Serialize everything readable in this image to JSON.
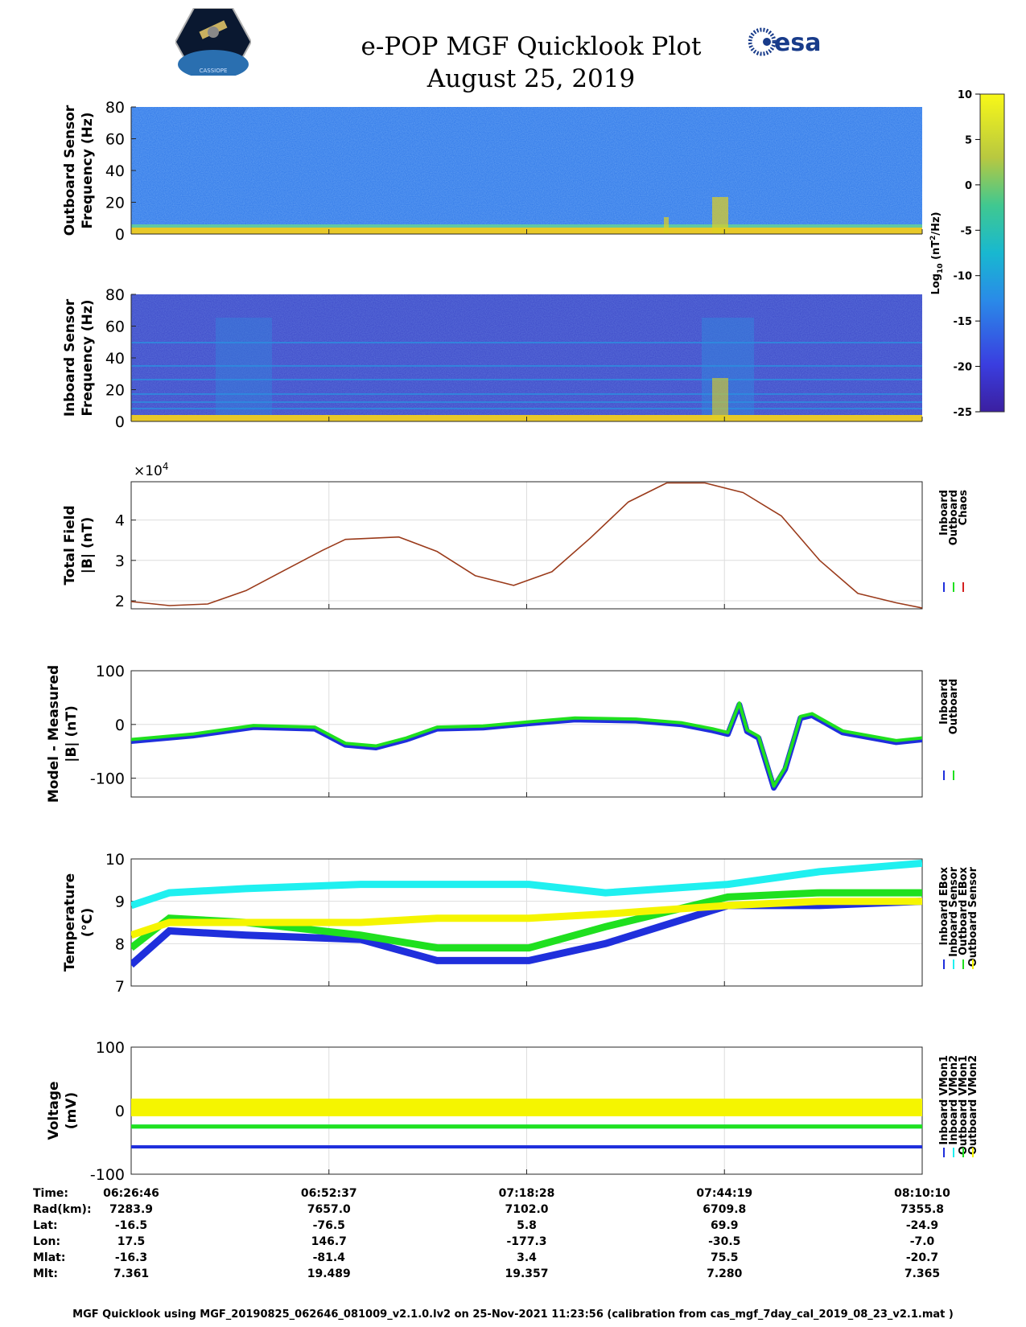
{
  "title_line1": "e-POP MGF Quicklook Plot",
  "title_line2": "August 25, 2019",
  "logo_left_text": "CASSIOPE",
  "logo_right_text": "esa",
  "colors": {
    "inboard": "#1f2fdc",
    "outboard": "#1fe01f",
    "chaos": "#d42020",
    "total_field_line": "#9a3a1a",
    "cyan": "#1ff0f0",
    "yellow": "#f5f500",
    "spectrogram_outboard_bg": "#2b74e8",
    "spectrogram_inboard_bg": "#3a45c8"
  },
  "colorbar": {
    "label": "Log10 (nT2/Hz)",
    "label_base": "Log",
    "label_sub": "10",
    "label_unit_pre": " (nT",
    "label_sup": "2",
    "label_unit_post": "/Hz)",
    "ticks": [
      "10",
      "5",
      "0",
      "-5",
      "-10",
      "-15",
      "-20",
      "-25"
    ],
    "range": [
      -25,
      10
    ]
  },
  "time_axis": {
    "labels": [
      "06:26:46",
      "06:52:37",
      "07:18:28",
      "07:44:19",
      "08:10:10"
    ]
  },
  "chart_data": [
    {
      "type": "heatmap",
      "id": "outboard_spectrogram",
      "ylabel_line1": "Outboard Sensor",
      "ylabel_line2": "Frequency (Hz)",
      "ylim": [
        0,
        80
      ],
      "yticks": [
        "0",
        "20",
        "40",
        "60",
        "80"
      ]
    },
    {
      "type": "heatmap",
      "id": "inboard_spectrogram",
      "ylabel_line1": "Inboard Sensor",
      "ylabel_line2": "Frequency (Hz)",
      "ylim": [
        0,
        80
      ],
      "yticks": [
        "0",
        "20",
        "40",
        "60",
        "80"
      ]
    },
    {
      "type": "line",
      "id": "total_field",
      "ylabel_line1": "Total Field",
      "ylabel_line2": "|B| (nT)",
      "exponent_label": "×10",
      "exponent_power": "4",
      "ylim": [
        1.8,
        4.95
      ],
      "yticks": [
        "2",
        "3",
        "4"
      ],
      "x_minutes": [
        0,
        5,
        10,
        15,
        20,
        25,
        28,
        35,
        40,
        45,
        50,
        55,
        60,
        65,
        70,
        75,
        80,
        85,
        90,
        95,
        100,
        103.4
      ],
      "values": [
        1.98,
        1.88,
        1.92,
        2.25,
        2.75,
        3.25,
        3.52,
        3.58,
        3.22,
        2.62,
        2.38,
        2.72,
        3.55,
        4.45,
        4.92,
        4.92,
        4.68,
        4.1,
        3.0,
        2.18,
        1.95,
        1.82
      ],
      "legend": [
        "Inboard",
        "Outboard",
        "Chaos"
      ]
    },
    {
      "type": "line",
      "id": "model_minus_measured",
      "ylabel_line1": "Model - Measured",
      "ylabel_line2": "|B| (nT)",
      "ylim": [
        -135,
        100
      ],
      "yticks": [
        "100",
        "0",
        "-100"
      ],
      "x_minutes": [
        0,
        8,
        16,
        24,
        28,
        32,
        36,
        40,
        46,
        52,
        58,
        66,
        72,
        76,
        78,
        79.5,
        80.5,
        82,
        84,
        85.5,
        87.5,
        89,
        93,
        100,
        103.4
      ],
      "values": [
        -28,
        -18,
        -2,
        -5,
        -35,
        -40,
        -25,
        -5,
        -3,
        5,
        12,
        10,
        3,
        -8,
        -15,
        40,
        -10,
        -22,
        -115,
        -80,
        15,
        20,
        -12,
        -30,
        -25
      ],
      "legend": [
        "Inboard",
        "Outboard"
      ]
    },
    {
      "type": "line",
      "id": "temperature",
      "ylabel_line1": "Temperature",
      "ylabel_line2": "(°C)",
      "ylim": [
        7,
        10
      ],
      "yticks": [
        "10",
        "9",
        "8",
        "7"
      ],
      "series": [
        {
          "name": "Inboard EBox",
          "x_minutes": [
            0,
            5,
            15,
            30,
            40,
            52,
            62,
            78,
            90,
            103.4
          ],
          "values": [
            7.5,
            8.3,
            8.2,
            8.1,
            7.6,
            7.6,
            8.0,
            8.9,
            8.9,
            9.0
          ]
        },
        {
          "name": "Inboard Sensor",
          "x_minutes": [
            0,
            5,
            15,
            30,
            40,
            52,
            62,
            78,
            90,
            103.4
          ],
          "values": [
            8.9,
            9.2,
            9.3,
            9.4,
            9.4,
            9.4,
            9.2,
            9.4,
            9.7,
            9.9
          ]
        },
        {
          "name": "Outboard EBox",
          "x_minutes": [
            0,
            5,
            15,
            30,
            40,
            52,
            62,
            78,
            90,
            103.4
          ],
          "values": [
            7.9,
            8.6,
            8.5,
            8.2,
            7.9,
            7.9,
            8.4,
            9.1,
            9.2,
            9.2
          ]
        },
        {
          "name": "Outboard Sensor",
          "x_minutes": [
            0,
            5,
            15,
            30,
            40,
            52,
            62,
            78,
            90,
            103.4
          ],
          "values": [
            8.2,
            8.5,
            8.5,
            8.5,
            8.6,
            8.6,
            8.7,
            8.9,
            9.0,
            9.0
          ]
        }
      ],
      "legend": [
        "Inboard EBox",
        "Inboard Sensor",
        "Outboard EBox",
        "Outboard Sensor"
      ]
    },
    {
      "type": "line",
      "id": "voltage",
      "ylabel_line1": "Voltage",
      "ylabel_line2": "(mV)",
      "ylim": [
        -100,
        100
      ],
      "yticks": [
        "100",
        "0",
        "-100"
      ],
      "series": [
        {
          "name": "Inboard VMon1",
          "x_minutes": [
            0,
            103.4
          ],
          "values": [
            -57,
            -57
          ]
        },
        {
          "name": "Inboard VMon2",
          "x_minutes": [
            0,
            103.4
          ],
          "values": [
            -25,
            -25
          ]
        },
        {
          "name": "Outboard VMon1",
          "x_minutes": [
            0,
            103.4
          ],
          "values": [
            -25,
            -25
          ]
        },
        {
          "name": "Outboard VMon2",
          "x_minutes": [
            0,
            103.4
          ],
          "values": [
            5,
            5
          ]
        }
      ],
      "legend": [
        "Inboard VMon1",
        "Inboard VMon2",
        "Outboard VMon1",
        "Outboard VMon2"
      ]
    }
  ],
  "ephemeris": {
    "rows": [
      {
        "label": "Time:",
        "values": [
          "06:26:46",
          "06:52:37",
          "07:18:28",
          "07:44:19",
          "08:10:10"
        ]
      },
      {
        "label": "Rad(km):",
        "values": [
          "7283.9",
          "7657.0",
          "7102.0",
          "6709.8",
          "7355.8"
        ]
      },
      {
        "label": "Lat:",
        "values": [
          "-16.5",
          "-76.5",
          "5.8",
          "69.9",
          "-24.9"
        ]
      },
      {
        "label": "Lon:",
        "values": [
          "17.5",
          "146.7",
          "-177.3",
          "-30.5",
          "-7.0"
        ]
      },
      {
        "label": "Mlat:",
        "values": [
          "-16.3",
          "-81.4",
          "3.4",
          "75.5",
          "-20.7"
        ]
      },
      {
        "label": "Mlt:",
        "values": [
          "7.361",
          "19.489",
          "19.357",
          "7.280",
          "7.365"
        ]
      }
    ]
  },
  "footer": "MGF Quicklook using MGF_20190825_062646_081009_v2.1.0.lv2 on 25-Nov-2021 11:23:56 (calibration from cas_mgf_7day_cal_2019_08_23_v2.1.mat )"
}
